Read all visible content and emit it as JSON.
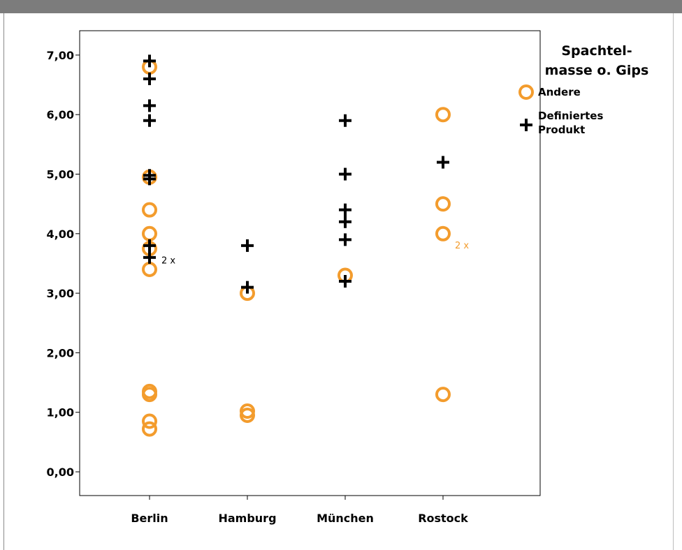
{
  "chart_data": {
    "type": "scatter",
    "categories": [
      "Berlin",
      "Hamburg",
      "München",
      "Rostock"
    ],
    "ylim": [
      -0.4,
      7.8
    ],
    "yticks": [
      0,
      1,
      2,
      3,
      4,
      5,
      6,
      7
    ],
    "ytick_labels": [
      "0,00",
      "1,00",
      "2,00",
      "3,00",
      "4,00",
      "5,00",
      "6,00",
      "7,00"
    ],
    "grid": false,
    "legend": {
      "position": "top-right",
      "title_lines": [
        "Spachtel-",
        "masse o. Gips"
      ]
    },
    "series": [
      {
        "name": "Andere",
        "marker": "circle",
        "color": "#f39c2d",
        "points": [
          {
            "x": "Berlin",
            "y": 6.8
          },
          {
            "x": "Berlin",
            "y": 4.95
          },
          {
            "x": "Berlin",
            "y": 4.4
          },
          {
            "x": "Berlin",
            "y": 4.0
          },
          {
            "x": "Berlin",
            "y": 3.75
          },
          {
            "x": "Berlin",
            "y": 3.4
          },
          {
            "x": "Berlin",
            "y": 1.35
          },
          {
            "x": "Berlin",
            "y": 1.3
          },
          {
            "x": "Berlin",
            "y": 0.85
          },
          {
            "x": "Berlin",
            "y": 0.72
          },
          {
            "x": "Hamburg",
            "y": 3.0
          },
          {
            "x": "Hamburg",
            "y": 1.02
          },
          {
            "x": "Hamburg",
            "y": 0.95
          },
          {
            "x": "München",
            "y": 3.3
          },
          {
            "x": "Rostock",
            "y": 6.0
          },
          {
            "x": "Rostock",
            "y": 4.5
          },
          {
            "x": "Rostock",
            "y": 4.0
          },
          {
            "x": "Rostock",
            "y": 1.3
          }
        ]
      },
      {
        "name": "Definiertes Produkt",
        "legend_lines": [
          "Definiertes",
          "Produkt"
        ],
        "marker": "plus",
        "color": "#000000",
        "points": [
          {
            "x": "Berlin",
            "y": 6.9
          },
          {
            "x": "Berlin",
            "y": 6.6
          },
          {
            "x": "Berlin",
            "y": 6.15
          },
          {
            "x": "Berlin",
            "y": 5.9
          },
          {
            "x": "Berlin",
            "y": 4.98
          },
          {
            "x": "Berlin",
            "y": 4.92
          },
          {
            "x": "Berlin",
            "y": 3.8
          },
          {
            "x": "Berlin",
            "y": 3.6
          },
          {
            "x": "Hamburg",
            "y": 3.8
          },
          {
            "x": "Hamburg",
            "y": 3.1
          },
          {
            "x": "München",
            "y": 5.9
          },
          {
            "x": "München",
            "y": 5.0
          },
          {
            "x": "München",
            "y": 4.4
          },
          {
            "x": "München",
            "y": 4.2
          },
          {
            "x": "München",
            "y": 3.9
          },
          {
            "x": "München",
            "y": 3.2
          },
          {
            "x": "Rostock",
            "y": 5.2
          }
        ]
      }
    ],
    "annotations": [
      {
        "text": "2 x",
        "x": "Berlin",
        "y": 3.5,
        "color": "#000000"
      },
      {
        "text": "2 x",
        "x": "Rostock",
        "y": 3.75,
        "color": "#f39c2d"
      }
    ]
  }
}
